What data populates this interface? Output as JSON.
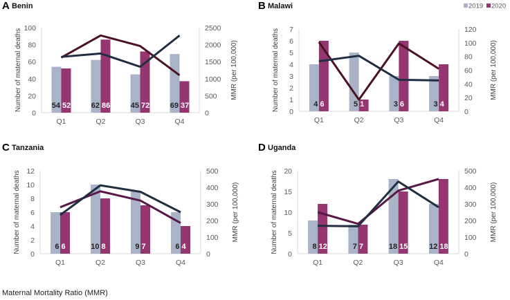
{
  "colors": {
    "bar_2019": "#aab4c9",
    "bar_2020": "#963670",
    "line_2019": "#1f2e40",
    "line_2020_ab": "#4b1222",
    "line_2020_cd": "#5a1846",
    "axis": "#d9d9d9"
  },
  "legend": [
    {
      "name": "2019"
    },
    {
      "name": "2020"
    }
  ],
  "footer": {
    "text": "Maternal Mortality Ratio (MMR)"
  },
  "chart_data": [
    {
      "type": "bar+line",
      "letter": "A",
      "title": "Benin",
      "categories": [
        "Q1",
        "Q2",
        "Q3",
        "Q4"
      ],
      "ylabel": "Number of maternal deaths",
      "y2label": "MMR (per 100,000)",
      "ylim": [
        0,
        100
      ],
      "yticks": [
        0,
        20,
        40,
        60,
        80,
        100
      ],
      "y2lim": [
        0,
        2500
      ],
      "y2ticks": [
        0,
        500,
        1000,
        1500,
        2000,
        2500
      ],
      "deaths": [
        {
          "name": "2019",
          "values": [
            54,
            62,
            45,
            69
          ]
        },
        {
          "name": "2020",
          "values": [
            52,
            86,
            72,
            37
          ]
        }
      ],
      "mmr": [
        {
          "name": "2019",
          "values": [
            1640,
            1740,
            1350,
            2270
          ]
        },
        {
          "name": "2020",
          "values": [
            1620,
            2270,
            1960,
            1100
          ]
        }
      ]
    },
    {
      "type": "bar+line",
      "letter": "B",
      "title": "Malawi",
      "categories": [
        "Q1",
        "Q2",
        "Q3",
        "Q4"
      ],
      "ylabel": "Number of maternal deaths",
      "y2label": "MMR (per 100,000)",
      "ylim": [
        0,
        7
      ],
      "yticks": [
        0,
        1,
        2,
        3,
        4,
        5,
        6,
        7
      ],
      "y2lim": [
        0,
        120
      ],
      "y2ticks": [
        0,
        20,
        40,
        60,
        80,
        100,
        120
      ],
      "deaths": [
        {
          "name": "2019",
          "values": [
            4,
            5,
            3,
            3
          ]
        },
        {
          "name": "2020",
          "values": [
            6,
            1,
            6,
            4
          ]
        }
      ],
      "mmr": [
        {
          "name": "2019",
          "values": [
            73,
            81,
            46,
            45
          ]
        },
        {
          "name": "2020",
          "values": [
            101,
            17,
            99,
            62
          ]
        }
      ]
    },
    {
      "type": "bar+line",
      "letter": "C",
      "title": "Tanzania",
      "categories": [
        "Q1",
        "Q2",
        "Q3",
        "Q4"
      ],
      "ylabel": "Number of maternal deaths",
      "y2label": "MMR (per 100,000)",
      "ylim": [
        0,
        12
      ],
      "yticks": [
        0,
        2,
        4,
        6,
        8,
        10,
        12
      ],
      "y2lim": [
        0,
        500
      ],
      "y2ticks": [
        0,
        100,
        200,
        300,
        400,
        500
      ],
      "deaths": [
        {
          "name": "2019",
          "values": [
            6,
            10,
            9,
            6
          ]
        },
        {
          "name": "2020",
          "values": [
            6,
            8,
            7,
            4
          ]
        }
      ],
      "mmr": [
        {
          "name": "2019",
          "values": [
            233,
            412,
            373,
            250
          ]
        },
        {
          "name": "2020",
          "values": [
            280,
            376,
            320,
            185
          ]
        }
      ]
    },
    {
      "type": "bar+line",
      "letter": "D",
      "title": "Uganda",
      "categories": [
        "Q1",
        "Q2",
        "Q3",
        "Q4"
      ],
      "ylabel": "Number of maternal deaths",
      "y2label": "MMR (per 100,000)",
      "ylim": [
        0,
        20
      ],
      "yticks": [
        0,
        5,
        10,
        15,
        20
      ],
      "y2lim": [
        0,
        500
      ],
      "y2ticks": [
        0,
        100,
        200,
        300,
        400,
        500
      ],
      "deaths": [
        {
          "name": "2019",
          "values": [
            8,
            7,
            18,
            12
          ]
        },
        {
          "name": "2020",
          "values": [
            12,
            7,
            15,
            18
          ]
        }
      ],
      "mmr": [
        {
          "name": "2019",
          "values": [
            168,
            165,
            435,
            280
          ]
        },
        {
          "name": "2020",
          "values": [
            250,
            180,
            380,
            450
          ]
        }
      ]
    }
  ]
}
